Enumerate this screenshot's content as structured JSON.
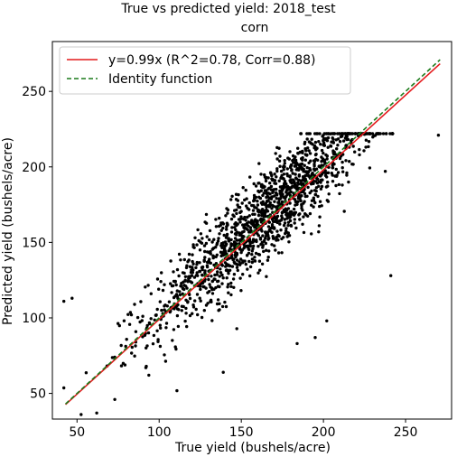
{
  "chart_data": {
    "type": "scatter",
    "title": "True vs predicted yield: 2018_test",
    "subtitle": "corn",
    "xlabel": "True yield (bushels/acre)",
    "ylabel": "Predicted yield (bushels/acre)",
    "xlim": [
      35,
      278
    ],
    "ylim": [
      33,
      283
    ],
    "xticks": [
      50,
      100,
      150,
      200,
      250
    ],
    "yticks": [
      50,
      100,
      150,
      200,
      250
    ],
    "grid": false,
    "legend_position": "top-left",
    "series": [
      {
        "name": "y=0.99x (R^2=0.78, Corr=0.88)",
        "kind": "line",
        "color": "#e41a1c",
        "style": "solid",
        "x": [
          43,
          271
        ],
        "y": [
          42.6,
          268.3
        ]
      },
      {
        "name": "Identity function",
        "kind": "line",
        "color": "#1a7a1a",
        "style": "dashed",
        "x": [
          43,
          271
        ],
        "y": [
          43,
          271
        ]
      }
    ],
    "scatter": {
      "color": "#000000",
      "approx_point_count": 1500,
      "slope": 0.99,
      "correlation": 0.88,
      "x_center": 165,
      "x_spread": 35,
      "x_range": [
        42,
        242
      ],
      "y_range": [
        36,
        222
      ],
      "outliers": [
        {
          "x": 270,
          "y": 221
        },
        {
          "x": 42,
          "y": 111
        },
        {
          "x": 47,
          "y": 113
        },
        {
          "x": 62,
          "y": 37
        },
        {
          "x": 73,
          "y": 46
        },
        {
          "x": 139,
          "y": 64
        },
        {
          "x": 184,
          "y": 83
        },
        {
          "x": 195,
          "y": 87
        },
        {
          "x": 202,
          "y": 98
        },
        {
          "x": 241,
          "y": 128
        }
      ]
    }
  }
}
